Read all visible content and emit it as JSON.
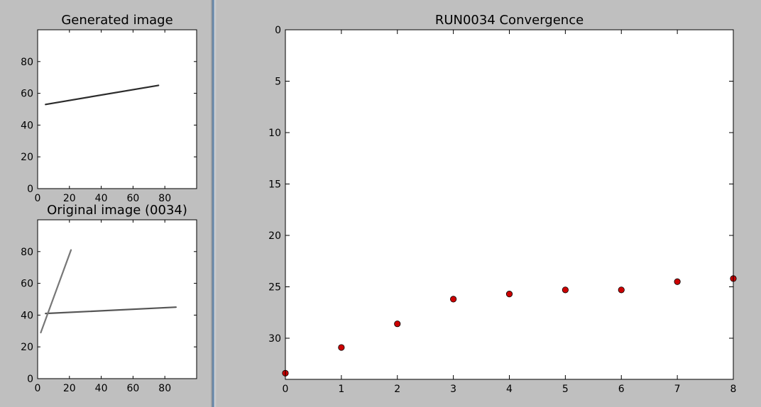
{
  "chart_data": [
    {
      "type": "image",
      "title": "Generated image",
      "xlim": [
        0,
        100
      ],
      "ylim": [
        100,
        0
      ],
      "y_inverted": true,
      "x_ticks": [
        "0",
        "20",
        "40",
        "60",
        "80"
      ],
      "y_ticks": [
        "0",
        "20",
        "40",
        "60",
        "80"
      ],
      "x_tick_values": [
        0,
        20,
        40,
        60,
        80
      ],
      "y_tick_values": [
        0,
        20,
        40,
        60,
        80
      ],
      "lines": [
        {
          "x": [
            5,
            76
          ],
          "y": [
            53,
            65
          ],
          "color": "#2b2b2b"
        }
      ]
    },
    {
      "type": "image",
      "title": "Original image (0034)",
      "xlim": [
        0,
        100
      ],
      "ylim": [
        100,
        0
      ],
      "y_inverted": true,
      "x_ticks": [
        "0",
        "20",
        "40",
        "60",
        "80"
      ],
      "y_ticks": [
        "0",
        "20",
        "40",
        "60",
        "80"
      ],
      "x_tick_values": [
        0,
        20,
        40,
        60,
        80
      ],
      "y_tick_values": [
        0,
        20,
        40,
        60,
        80
      ],
      "lines": [
        {
          "x": [
            5,
            87
          ],
          "y": [
            41,
            45
          ],
          "color": "#555555"
        },
        {
          "x": [
            2,
            21
          ],
          "y": [
            29,
            81
          ],
          "color": "#777777"
        }
      ]
    },
    {
      "type": "scatter",
      "title": "RUN0034 Convergence",
      "xlabel": "",
      "ylabel": "",
      "xlim": [
        0,
        8
      ],
      "ylim": [
        0,
        34
      ],
      "x_ticks": [
        "0",
        "1",
        "2",
        "3",
        "4",
        "5",
        "6",
        "7",
        "8"
      ],
      "y_ticks": [
        "0",
        "5",
        "10",
        "15",
        "20",
        "25",
        "30"
      ],
      "x_tick_values": [
        0,
        1,
        2,
        3,
        4,
        5,
        6,
        7,
        8
      ],
      "y_tick_values": [
        0,
        5,
        10,
        15,
        20,
        25,
        30
      ],
      "marker_color": "#cc0000",
      "x": [
        0,
        1,
        2,
        3,
        4,
        5,
        6,
        7,
        8
      ],
      "y": [
        33.4,
        30.9,
        28.6,
        26.2,
        25.7,
        25.3,
        25.3,
        24.5,
        24.2
      ]
    }
  ]
}
